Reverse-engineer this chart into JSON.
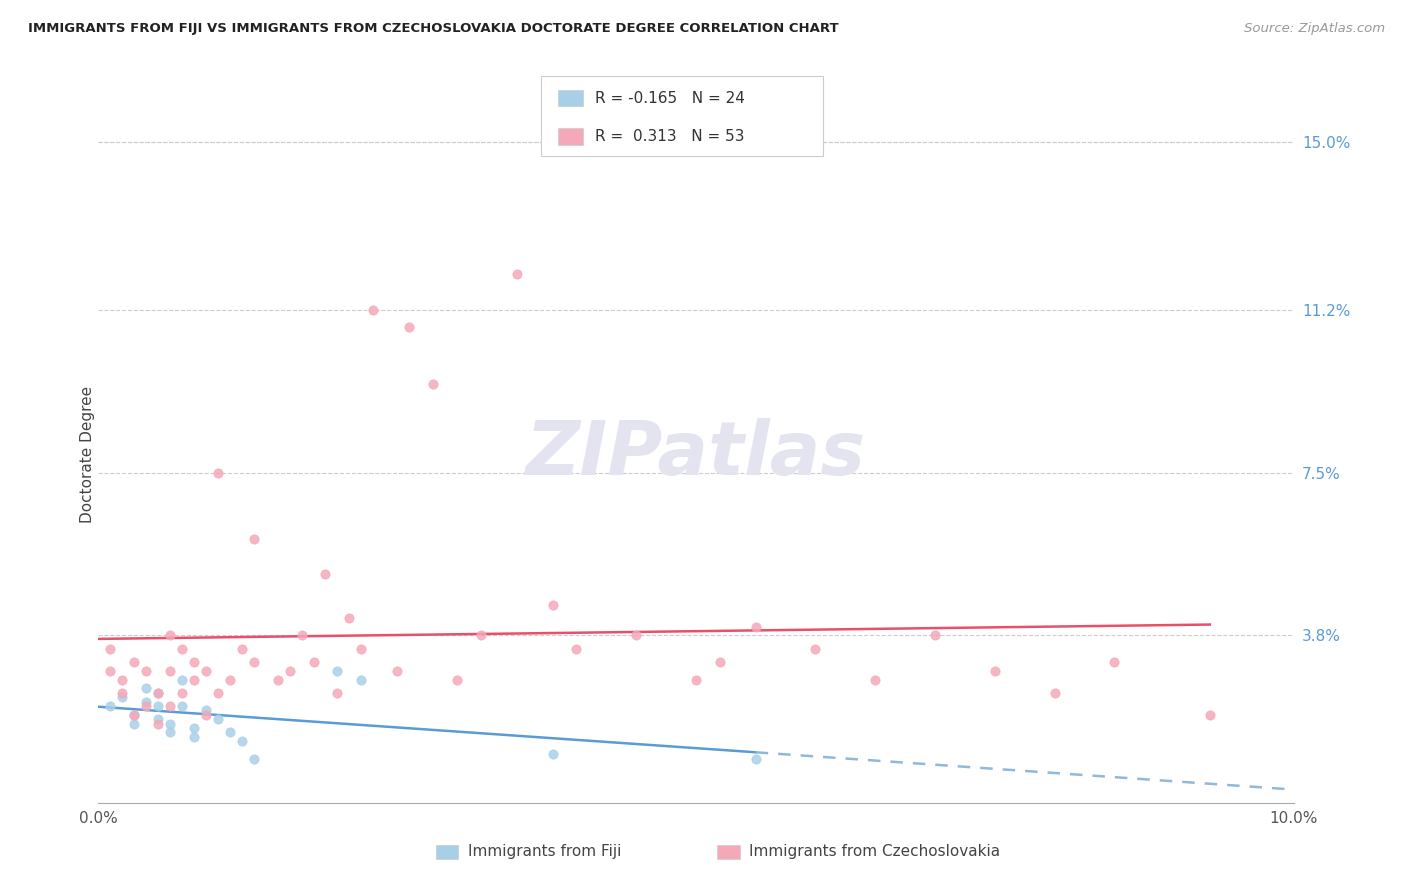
{
  "title": "IMMIGRANTS FROM FIJI VS IMMIGRANTS FROM CZECHOSLOVAKIA DOCTORATE DEGREE CORRELATION CHART",
  "source": "Source: ZipAtlas.com",
  "xlabel_fiji": "Immigrants from Fiji",
  "xlabel_czech": "Immigrants from Czechoslovakia",
  "ylabel": "Doctorate Degree",
  "xlim": [
    0.0,
    0.1
  ],
  "ylim": [
    0.0,
    0.158
  ],
  "ytick_positions": [
    0.038,
    0.075,
    0.112,
    0.15
  ],
  "ytick_labels": [
    "3.8%",
    "7.5%",
    "11.2%",
    "15.0%"
  ],
  "fiji_color": "#a8cfe8",
  "czech_color": "#f4a8b8",
  "fiji_line_color": "#5b9bd5",
  "fiji_dash_color": "#90b8d8",
  "czech_line_color": "#e8506a",
  "fiji_R": -0.165,
  "fiji_N": 24,
  "czech_R": 0.313,
  "czech_N": 53,
  "watermark_text": "ZIPatlas",
  "fiji_x": [
    0.001,
    0.002,
    0.003,
    0.003,
    0.004,
    0.004,
    0.005,
    0.005,
    0.005,
    0.006,
    0.006,
    0.007,
    0.007,
    0.008,
    0.008,
    0.009,
    0.01,
    0.011,
    0.012,
    0.013,
    0.02,
    0.022,
    0.038,
    0.055
  ],
  "fiji_y": [
    0.022,
    0.024,
    0.018,
    0.02,
    0.023,
    0.026,
    0.019,
    0.022,
    0.025,
    0.016,
    0.018,
    0.022,
    0.028,
    0.015,
    0.017,
    0.021,
    0.019,
    0.016,
    0.014,
    0.01,
    0.03,
    0.028,
    0.011,
    0.01
  ],
  "czech_x": [
    0.001,
    0.001,
    0.002,
    0.002,
    0.003,
    0.003,
    0.004,
    0.004,
    0.005,
    0.005,
    0.006,
    0.006,
    0.006,
    0.007,
    0.007,
    0.008,
    0.008,
    0.009,
    0.009,
    0.01,
    0.01,
    0.011,
    0.012,
    0.013,
    0.013,
    0.015,
    0.016,
    0.017,
    0.018,
    0.019,
    0.02,
    0.021,
    0.022,
    0.023,
    0.025,
    0.026,
    0.028,
    0.03,
    0.032,
    0.035,
    0.038,
    0.04,
    0.045,
    0.05,
    0.052,
    0.055,
    0.06,
    0.065,
    0.07,
    0.075,
    0.08,
    0.085,
    0.093
  ],
  "czech_y": [
    0.03,
    0.035,
    0.025,
    0.028,
    0.02,
    0.032,
    0.022,
    0.03,
    0.018,
    0.025,
    0.022,
    0.03,
    0.038,
    0.025,
    0.035,
    0.028,
    0.032,
    0.02,
    0.03,
    0.025,
    0.075,
    0.028,
    0.035,
    0.032,
    0.06,
    0.028,
    0.03,
    0.038,
    0.032,
    0.052,
    0.025,
    0.042,
    0.035,
    0.112,
    0.03,
    0.108,
    0.095,
    0.028,
    0.038,
    0.12,
    0.045,
    0.035,
    0.038,
    0.028,
    0.032,
    0.04,
    0.035,
    0.028,
    0.038,
    0.03,
    0.025,
    0.032,
    0.02
  ]
}
